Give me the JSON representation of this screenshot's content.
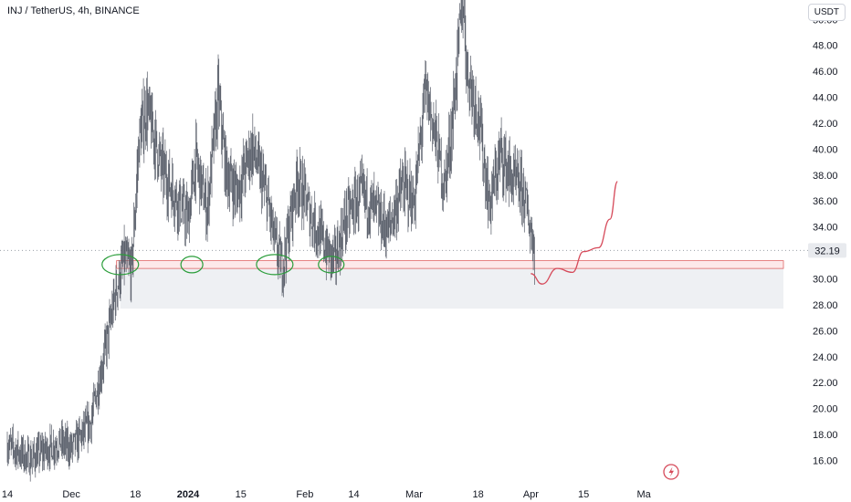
{
  "header": {
    "title": "INJ / TetherUS, 4h, BINANCE",
    "unit": "USDT"
  },
  "colors": {
    "candle": "#555a66",
    "support_line": "#e06666",
    "support_fill": "#fde9ea",
    "demand_zone": "#eef0f3",
    "circle": "#2a9d3a",
    "projection": "#d64a5a",
    "dotted": "#9aa0a8",
    "label_bg": "#e8eaee"
  },
  "chart_data": {
    "type": "line",
    "ylim": [
      14.2,
      51.5
    ],
    "y_ticks": [
      16,
      18,
      20,
      22,
      24,
      26,
      28,
      30,
      32,
      34,
      36,
      38,
      40,
      42,
      44,
      46,
      48,
      50
    ],
    "y_tick_labels": [
      "16.00",
      "18.00",
      "20.00",
      "22.00",
      "24.00",
      "26.00",
      "28.00",
      "30.00",
      "32.00",
      "34.00",
      "36.00",
      "38.00",
      "40.00",
      "42.00",
      "44.00",
      "46.00",
      "48.00",
      "50.00"
    ],
    "x_tick_labels": [
      "14",
      "Dec",
      "18",
      "2024",
      "15",
      "Feb",
      "14",
      "Mar",
      "18",
      "Apr",
      "15",
      "Ma"
    ],
    "x_tick_bold": [
      "2024"
    ],
    "current_price": 32.19,
    "current_price_label": "32.19",
    "series": [
      {
        "x": [
          "Nov 14",
          "Nov 20",
          "Nov 28",
          "Dec 1",
          "Dec 6",
          "Dec 10",
          "Dec 13",
          "Dec 15",
          "Dec 17",
          "Dec 19",
          "Dec 21",
          "Dec 25",
          "Dec 28",
          "Jan 1",
          "Jan 3",
          "Jan 6",
          "Jan 9",
          "Jan 11",
          "Jan 14",
          "Jan 18",
          "Jan 22",
          "Jan 24",
          "Jan 26",
          "Jan 30",
          "Feb 3",
          "Feb 7",
          "Feb 9",
          "Feb 12",
          "Feb 16",
          "Feb 20",
          "Feb 23",
          "Feb 27",
          "Mar 1",
          "Mar 4",
          "Mar 6",
          "Mar 9",
          "Mar 11",
          "Mar 14",
          "Mar 15",
          "Mar 18",
          "Mar 21",
          "Mar 24",
          "Mar 27",
          "Mar 30",
          "Apr 2"
        ],
        "values": [
          17.2,
          16.1,
          17.4,
          16.9,
          18.8,
          24.5,
          29.3,
          31.5,
          30.6,
          40.8,
          43.2,
          38.5,
          36.8,
          34.5,
          39.2,
          35.2,
          44.1,
          38.3,
          36.6,
          40.2,
          36.1,
          32.8,
          30.9,
          37.8,
          34.6,
          32.1,
          31.4,
          34.8,
          36.5,
          35.1,
          33.7,
          37.2,
          35.8,
          44.5,
          42.0,
          37.1,
          41.6,
          52.0,
          46.2,
          42.8,
          35.6,
          39.7,
          37.6,
          36.7,
          32.2
        ]
      }
    ],
    "annotations": {
      "support_zone": [
        30.8,
        31.4
      ],
      "demand_zone": [
        27.7,
        31.4
      ],
      "projection": [
        {
          "x": "Apr 1",
          "y": 30.4
        },
        {
          "x": "Apr 4",
          "y": 29.6
        },
        {
          "x": "Apr 8",
          "y": 30.8
        },
        {
          "x": "Apr 12",
          "y": 30.5
        },
        {
          "x": "Apr 15",
          "y": 32.1
        },
        {
          "x": "Apr 19",
          "y": 32.4
        },
        {
          "x": "Apr 22",
          "y": 34.6
        },
        {
          "x": "Apr 24",
          "y": 37.5
        }
      ],
      "circled_dates": [
        "Dec 14",
        "Jan 2",
        "Jan 24",
        "Feb 8"
      ]
    }
  }
}
